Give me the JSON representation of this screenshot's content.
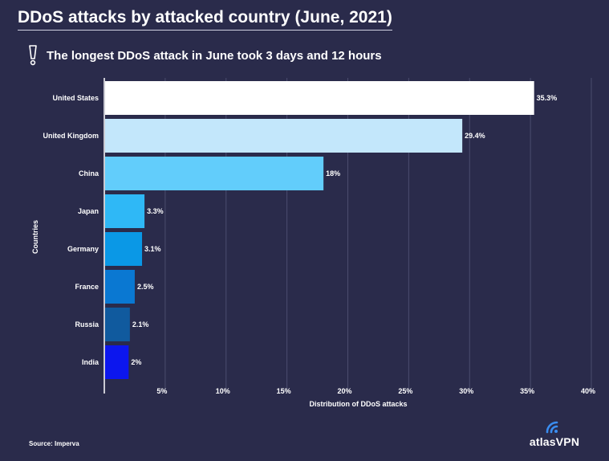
{
  "title": "DDoS attacks by attacked country (June, 2021)",
  "subtitle": "The longest DDoS attack in June took 3 days and 12 hours",
  "source": "Source: Imperva",
  "brand": "atlasVPN",
  "chart_data": {
    "type": "bar",
    "orientation": "horizontal",
    "categories": [
      "United States",
      "United Kingdom",
      "China",
      "Japan",
      "Germany",
      "France",
      "Russia",
      "India"
    ],
    "values": [
      35.3,
      29.4,
      18,
      3.3,
      3.1,
      2.5,
      2.1,
      2
    ],
    "value_labels": [
      "35.3%",
      "29.4%",
      "18%",
      "3.3%",
      "3.1%",
      "2.5%",
      "2.1%",
      "2%"
    ],
    "colors": [
      "#ffffff",
      "#c3e7fb",
      "#62cdfb",
      "#2fb8f6",
      "#0a98e6",
      "#0a78d2",
      "#105a9e",
      "#0c16ee"
    ],
    "xlabel": "Distribution of DDoS attacks",
    "ylabel": "Countries",
    "xlim": [
      0,
      40
    ],
    "xticks": [
      5,
      10,
      15,
      20,
      25,
      30,
      35,
      40
    ],
    "xtick_labels": [
      "5%",
      "10%",
      "15%",
      "20%",
      "25%",
      "30%",
      "35%",
      "40%"
    ],
    "grid": true
  }
}
